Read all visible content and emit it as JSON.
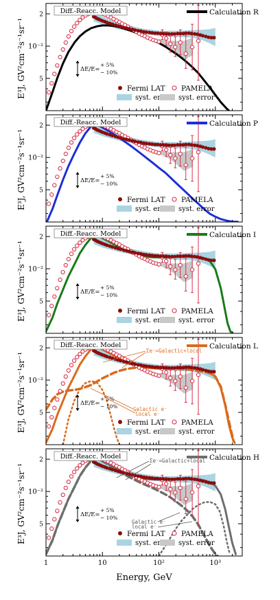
{
  "chart_data": {
    "type": "line",
    "xscale": "log",
    "yscale": "log",
    "xlim": [
      1,
      3000
    ],
    "ylim": [
      0.0025,
      0.025
    ],
    "xlabel": "Energy, GeV",
    "ylabel_main": "E³J,",
    "ylabel_units": "GV²cm⁻²s⁻¹sr⁻¹",
    "x_tick_labels": [
      "1",
      "10",
      "10²",
      "10³"
    ],
    "y_tick_labels": [
      "5",
      "10⁻²",
      "2"
    ],
    "model_box": "Diff.-Reacc. Model",
    "uncertainty_label": "ΔE/E=",
    "uncertainty_plus": "+ 5%",
    "uncertainty_minus": "− 10%",
    "legend": {
      "fermi": "Fermi LAT",
      "pamela": "PAMELA",
      "syst1": "syst. error",
      "syst2": "syst. error"
    },
    "colors": {
      "fermi": "#8b0d0d",
      "pamela": "#d9304a",
      "fermi_syst": "#a9d4e2",
      "pamela_syst": "#c8c8c8"
    },
    "fermi": {
      "x": [
        7,
        7.5,
        8,
        8.6,
        9.3,
        10,
        11,
        12,
        13.5,
        15,
        17,
        19,
        21,
        24,
        27,
        30,
        34,
        38,
        43,
        48,
        54,
        60,
        68,
        76,
        85,
        95,
        107,
        120,
        135,
        150,
        170,
        190,
        215,
        240,
        270,
        300,
        340,
        380,
        430,
        480,
        540,
        600,
        680,
        760,
        850,
        950
      ],
      "y": [
        0.0188,
        0.0185,
        0.0181,
        0.0178,
        0.0175,
        0.0172,
        0.0169,
        0.0166,
        0.0163,
        0.016,
        0.0157,
        0.0154,
        0.0152,
        0.0149,
        0.0147,
        0.0145,
        0.0143,
        0.0141,
        0.0139,
        0.0138,
        0.0136,
        0.0135,
        0.0134,
        0.0133,
        0.0132,
        0.0132,
        0.0131,
        0.0131,
        0.013,
        0.013,
        0.013,
        0.013,
        0.0131,
        0.0131,
        0.0131,
        0.0132,
        0.0132,
        0.0131,
        0.013,
        0.0129,
        0.0127,
        0.0125,
        0.0123,
        0.0121,
        0.012,
        0.012
      ],
      "syst_band": {
        "x": [
          7,
          10,
          20,
          50,
          100,
          200,
          400,
          600,
          800,
          1000
        ],
        "low": [
          0.017,
          0.0158,
          0.0143,
          0.013,
          0.0124,
          0.0122,
          0.012,
          0.0113,
          0.0106,
          0.01
        ],
        "high": [
          0.0205,
          0.0188,
          0.0163,
          0.0146,
          0.0139,
          0.0139,
          0.0141,
          0.0142,
          0.0144,
          0.0148
        ]
      }
    },
    "pamela": {
      "x": [
        1.12,
        1.26,
        1.41,
        1.58,
        1.78,
        2.0,
        2.24,
        2.51,
        2.82,
        3.16,
        3.55,
        3.98,
        4.47,
        5.01,
        5.62,
        6.31,
        7.08,
        7.94,
        8.91,
        10.0,
        11.2,
        12.6,
        14.1,
        15.8,
        17.8,
        20.0,
        22.4,
        25.1,
        28.2,
        31.6,
        35.5,
        39.8,
        44.7,
        50.1,
        56.2,
        63.1,
        70.8,
        79.4,
        89.1,
        100,
        115,
        135,
        160,
        195,
        240,
        300,
        390,
        500
      ],
      "y": [
        0.0037,
        0.0045,
        0.0055,
        0.0066,
        0.0079,
        0.0093,
        0.0108,
        0.0123,
        0.0138,
        0.0152,
        0.0164,
        0.0175,
        0.0185,
        0.0193,
        0.0199,
        0.0203,
        0.0205,
        0.0205,
        0.0203,
        0.02,
        0.0195,
        0.019,
        0.0185,
        0.0179,
        0.0173,
        0.0168,
        0.0162,
        0.0157,
        0.0152,
        0.0146,
        0.0141,
        0.0136,
        0.0131,
        0.0127,
        0.0124,
        0.012,
        0.0117,
        0.0114,
        0.0112,
        0.011,
        0.0128,
        0.0118,
        0.0105,
        0.0098,
        0.0108,
        0.0085,
        0.0098,
        0.0112
      ],
      "err_lo": [
        0.0037,
        0.0045,
        0.0055,
        0.0066,
        0.0079,
        0.0093,
        0.0108,
        0.0123,
        0.0138,
        0.0152,
        0.0164,
        0.0175,
        0.0185,
        0.0193,
        0.0199,
        0.0203,
        0.0205,
        0.0205,
        0.0203,
        0.02,
        0.0195,
        0.019,
        0.0185,
        0.0179,
        0.0173,
        0.0168,
        0.0162,
        0.0157,
        0.0152,
        0.0146,
        0.0141,
        0.0136,
        0.0131,
        0.0127,
        0.0124,
        0.012,
        0.0117,
        0.0114,
        0.0112,
        0.011,
        0.0115,
        0.0102,
        0.0088,
        0.008,
        0.0083,
        0.0062,
        0.006,
        0.0048
      ],
      "err_hi": [
        0.0037,
        0.0045,
        0.0055,
        0.0066,
        0.0079,
        0.0093,
        0.0108,
        0.0123,
        0.0138,
        0.0152,
        0.0164,
        0.0175,
        0.0185,
        0.0193,
        0.0199,
        0.0203,
        0.0205,
        0.0205,
        0.0203,
        0.02,
        0.0195,
        0.019,
        0.0185,
        0.0179,
        0.0173,
        0.0168,
        0.0162,
        0.0157,
        0.0152,
        0.0146,
        0.0141,
        0.0136,
        0.0131,
        0.0127,
        0.0124,
        0.012,
        0.0117,
        0.0114,
        0.0112,
        0.011,
        0.0142,
        0.0135,
        0.0124,
        0.0122,
        0.0142,
        0.0125,
        0.016,
        0.024
      ],
      "syst_band": {
        "x": [
          100,
          150,
          200,
          280,
          400
        ],
        "low": [
          0.0108,
          0.0098,
          0.0087,
          0.0075,
          0.0082
        ],
        "high": [
          0.0116,
          0.0112,
          0.0112,
          0.0112,
          0.012
        ]
      }
    },
    "panels": [
      {
        "name": "Calculation R",
        "color": "#000000",
        "total": {
          "x": [
            1,
            1.3,
            1.6,
            2,
            2.5,
            3.2,
            4,
            5,
            6.3,
            8,
            10,
            13,
            16,
            20,
            25,
            32,
            40,
            50,
            63,
            80,
            100,
            130,
            160,
            200,
            250,
            320,
            400,
            500,
            630,
            800,
            1000,
            1250,
            1600,
            2000,
            2200
          ],
          "y": [
            0.0025,
            0.0037,
            0.0051,
            0.0069,
            0.0088,
            0.0108,
            0.0124,
            0.0137,
            0.0147,
            0.0153,
            0.0156,
            0.0156,
            0.0154,
            0.015,
            0.0145,
            0.0139,
            0.0133,
            0.0127,
            0.012,
            0.0113,
            0.0107,
            0.0099,
            0.0092,
            0.0085,
            0.0078,
            0.007,
            0.0063,
            0.0056,
            0.0048,
            0.0041,
            0.0035,
            0.003,
            0.0026,
            0.00235,
            0.0022
          ]
        }
      },
      {
        "name": "Calculation P",
        "color": "#1d2fd6",
        "total": {
          "x": [
            1,
            1.3,
            1.6,
            2,
            2.5,
            3.2,
            4,
            5,
            6.3,
            7,
            8,
            10,
            13,
            16,
            20,
            25,
            32,
            40,
            50,
            63,
            80,
            100,
            130,
            160,
            200,
            250,
            320,
            400,
            500,
            630,
            800,
            1000,
            1250,
            1600,
            2000,
            2500
          ],
          "y": [
            0.0024,
            0.0033,
            0.0045,
            0.0062,
            0.0083,
            0.0109,
            0.0138,
            0.0168,
            0.0195,
            0.0205,
            0.0202,
            0.019,
            0.0176,
            0.0164,
            0.0152,
            0.014,
            0.0128,
            0.0117,
            0.0107,
            0.0097,
            0.0088,
            0.008,
            0.0072,
            0.0065,
            0.0058,
            0.0052,
            0.0046,
            0.0041,
            0.0037,
            0.0033,
            0.00298,
            0.0028,
            0.00266,
            0.00257,
            0.00252,
            0.00251
          ]
        }
      },
      {
        "name": "Calculation I",
        "color": "#1a7a1a",
        "total": {
          "x": [
            1,
            1.3,
            1.6,
            2,
            2.5,
            3.2,
            4,
            5,
            6.3,
            7,
            8,
            10,
            13,
            16,
            20,
            25,
            32,
            40,
            50,
            63,
            80,
            100,
            130,
            160,
            200,
            250,
            320,
            400,
            500,
            630,
            800,
            1000,
            1250,
            1450,
            1650,
            1850,
            2050
          ],
          "y": [
            0.0026,
            0.0035,
            0.0048,
            0.0064,
            0.0085,
            0.011,
            0.014,
            0.0167,
            0.0194,
            0.0205,
            0.0203,
            0.0193,
            0.018,
            0.0169,
            0.0158,
            0.0149,
            0.0141,
            0.0136,
            0.0132,
            0.0129,
            0.0128,
            0.0128,
            0.0128,
            0.0129,
            0.0129,
            0.013,
            0.013,
            0.0129,
            0.0128,
            0.0125,
            0.0118,
            0.0099,
            0.0066,
            0.0044,
            0.0031,
            0.0026,
            0.0025
          ]
        }
      },
      {
        "name": "Calculation L",
        "color": "#d96a1c",
        "annotation_total": "Σe⁻=Galactic+local",
        "annotation_galactic": "Galactic e⁻",
        "annotation_local": "local e⁻",
        "total": {
          "x": [
            1,
            1.3,
            1.6,
            2,
            2.5,
            3.2,
            4,
            5,
            6.3,
            7,
            8,
            10,
            13,
            16,
            20,
            25,
            32,
            40,
            50,
            63,
            80,
            100,
            130,
            160,
            200,
            250,
            320,
            400,
            500,
            630,
            800,
            1000,
            1250,
            1500,
            1750,
            2000,
            2200
          ],
          "y": [
            0.0026,
            0.0035,
            0.0048,
            0.0064,
            0.0085,
            0.011,
            0.014,
            0.0167,
            0.0194,
            0.0205,
            0.0203,
            0.0193,
            0.018,
            0.0169,
            0.0158,
            0.0149,
            0.0141,
            0.0136,
            0.0133,
            0.013,
            0.0129,
            0.0128,
            0.0128,
            0.0129,
            0.013,
            0.013,
            0.013,
            0.0129,
            0.0127,
            0.0124,
            0.0118,
            0.0108,
            0.0085,
            0.0058,
            0.0038,
            0.0029,
            0.0026
          ]
        },
        "galactic": {
          "x": [
            1,
            1.3,
            1.6,
            2,
            2.5,
            3.2,
            4,
            5,
            6.3,
            8,
            10,
            13,
            16,
            20,
            25,
            32,
            40,
            50,
            63,
            80,
            100,
            130,
            160,
            200,
            250,
            320,
            400,
            500,
            630,
            800,
            1000,
            1250,
            1500,
            1800,
            2100
          ],
          "y": [
            0.0053,
            0.0066,
            0.0074,
            0.0078,
            0.008,
            0.0081,
            0.0083,
            0.0086,
            0.009,
            0.0097,
            0.0104,
            0.0111,
            0.0117,
            0.0122,
            0.0126,
            0.0129,
            0.0131,
            0.0132,
            0.0132,
            0.0132,
            0.0131,
            0.013,
            0.0129,
            0.0128,
            0.0127,
            0.0126,
            0.0124,
            0.0122,
            0.012,
            0.0116,
            0.0108,
            0.0087,
            0.0059,
            0.0038,
            0.0027
          ]
        },
        "local": {
          "x": [
            2,
            2.5,
            3.2,
            4,
            5,
            6.3,
            8,
            10,
            12,
            14,
            16,
            18,
            20
          ],
          "y": [
            0.0025,
            0.0043,
            0.0065,
            0.0083,
            0.0094,
            0.0098,
            0.0095,
            0.0081,
            0.0064,
            0.0047,
            0.0036,
            0.0029,
            0.0025
          ]
        }
      },
      {
        "name": "Calculation H",
        "color": "#6e6e6e",
        "annotation_total": "Σe⁻=Galactic+local",
        "annotation_galactic": "Galactic e⁻",
        "annotation_local": "local e⁻",
        "total": {
          "x": [
            1,
            1.3,
            1.6,
            2,
            2.5,
            3.2,
            4,
            5,
            6.3,
            7,
            8,
            10,
            13,
            16,
            20,
            25,
            32,
            40,
            50,
            63,
            80,
            100,
            130,
            160,
            200,
            250,
            320,
            400,
            500,
            630,
            800,
            1000,
            1250,
            1500,
            1750,
            2000,
            2300
          ],
          "y": [
            0.0026,
            0.0035,
            0.0048,
            0.0064,
            0.0085,
            0.011,
            0.014,
            0.0167,
            0.0194,
            0.0205,
            0.0203,
            0.0193,
            0.018,
            0.0169,
            0.0158,
            0.0149,
            0.0141,
            0.0136,
            0.0133,
            0.013,
            0.0129,
            0.0129,
            0.0129,
            0.013,
            0.0131,
            0.0131,
            0.0131,
            0.013,
            0.0129,
            0.0127,
            0.0122,
            0.0113,
            0.0094,
            0.0068,
            0.0046,
            0.0033,
            0.0026
          ]
        },
        "galactic": {
          "x": [
            1,
            1.3,
            1.6,
            2,
            2.5,
            3.2,
            4,
            5,
            6.3,
            8,
            10,
            13,
            16,
            20,
            25,
            32,
            40,
            50,
            63,
            80,
            100,
            130,
            160,
            200,
            250,
            320,
            400,
            500,
            630,
            800,
            1000,
            1200
          ],
          "y": [
            0.0026,
            0.0035,
            0.0048,
            0.0064,
            0.0085,
            0.011,
            0.014,
            0.0167,
            0.0193,
            0.0202,
            0.0192,
            0.0177,
            0.0165,
            0.0153,
            0.0143,
            0.0134,
            0.0126,
            0.0119,
            0.0113,
            0.0107,
            0.0101,
            0.0094,
            0.0088,
            0.0081,
            0.0074,
            0.0066,
            0.0058,
            0.0049,
            0.0039,
            0.0031,
            0.0026,
            0.0024
          ]
        },
        "local": {
          "x": [
            100,
            130,
            160,
            200,
            250,
            320,
            400,
            500,
            630,
            800,
            1000,
            1200,
            1400,
            1600,
            1800
          ],
          "y": [
            0.0025,
            0.0031,
            0.0037,
            0.0045,
            0.0053,
            0.0061,
            0.0069,
            0.0075,
            0.0079,
            0.008,
            0.0076,
            0.0065,
            0.0048,
            0.0034,
            0.0026
          ]
        }
      }
    ]
  }
}
